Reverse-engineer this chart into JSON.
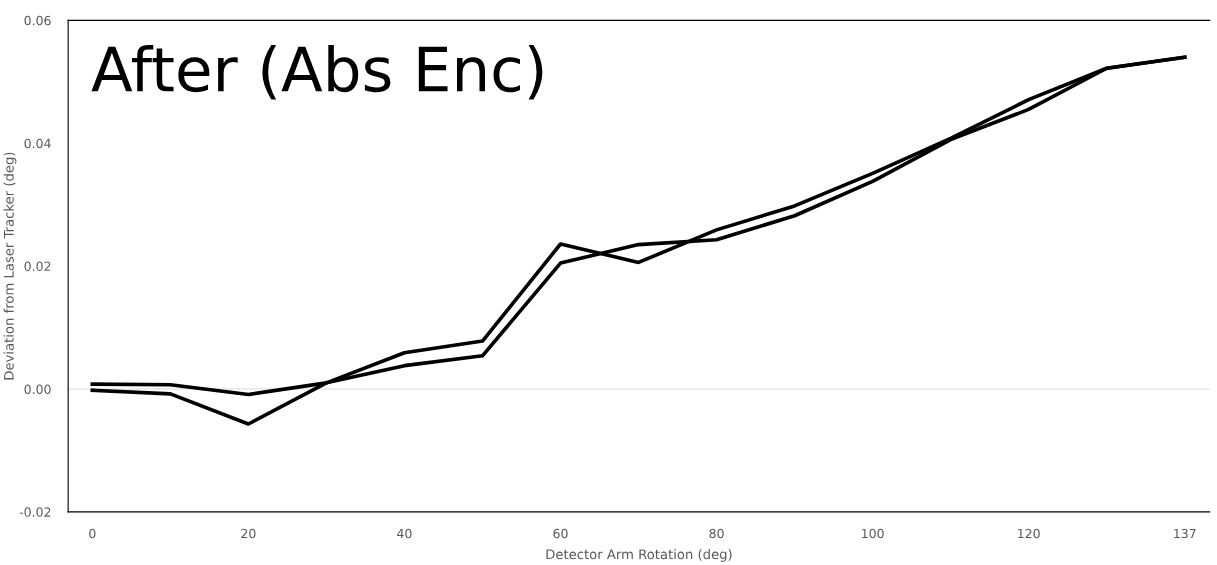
{
  "chart_data": {
    "type": "line",
    "title": "After (Abs Enc)",
    "xlabel": "Detector Arm Rotation (deg)",
    "ylabel": "Deviation from Laser Tracker (deg)",
    "categories": [
      "0",
      null,
      "20",
      null,
      "40",
      null,
      "60",
      null,
      "80",
      null,
      "100",
      null,
      "120",
      null,
      "137"
    ],
    "series": [
      {
        "color": "#000000",
        "values": [
          0.0008,
          0.0007,
          -0.0009,
          0.001,
          0.0038,
          0.0054,
          0.0205,
          0.0235,
          0.0243,
          0.0282,
          0.0338,
          0.0406,
          0.0455,
          0.0522,
          0.054
        ]
      },
      {
        "color": "#000000",
        "values": [
          -0.0002,
          -0.0008,
          -0.0057,
          0.001,
          0.0059,
          0.0078,
          0.0236,
          0.0206,
          0.0259,
          0.0298,
          0.0351,
          0.0408,
          0.0471,
          0.0522,
          0.054
        ]
      }
    ],
    "ylim": [
      -0.02,
      0.06
    ],
    "yticks": [
      {
        "value": -0.02,
        "label": "-0.02"
      },
      {
        "value": 0,
        "label": "0.00"
      },
      {
        "value": 0.02,
        "label": "0.02"
      },
      {
        "value": 0.04,
        "label": "0.04"
      },
      {
        "value": 0.06,
        "label": "0.06"
      }
    ],
    "ref_lines": [
      {
        "axis": "y",
        "value": 0,
        "color": "#d9d9d9"
      }
    ],
    "marker": "none",
    "line_style": "solid"
  }
}
